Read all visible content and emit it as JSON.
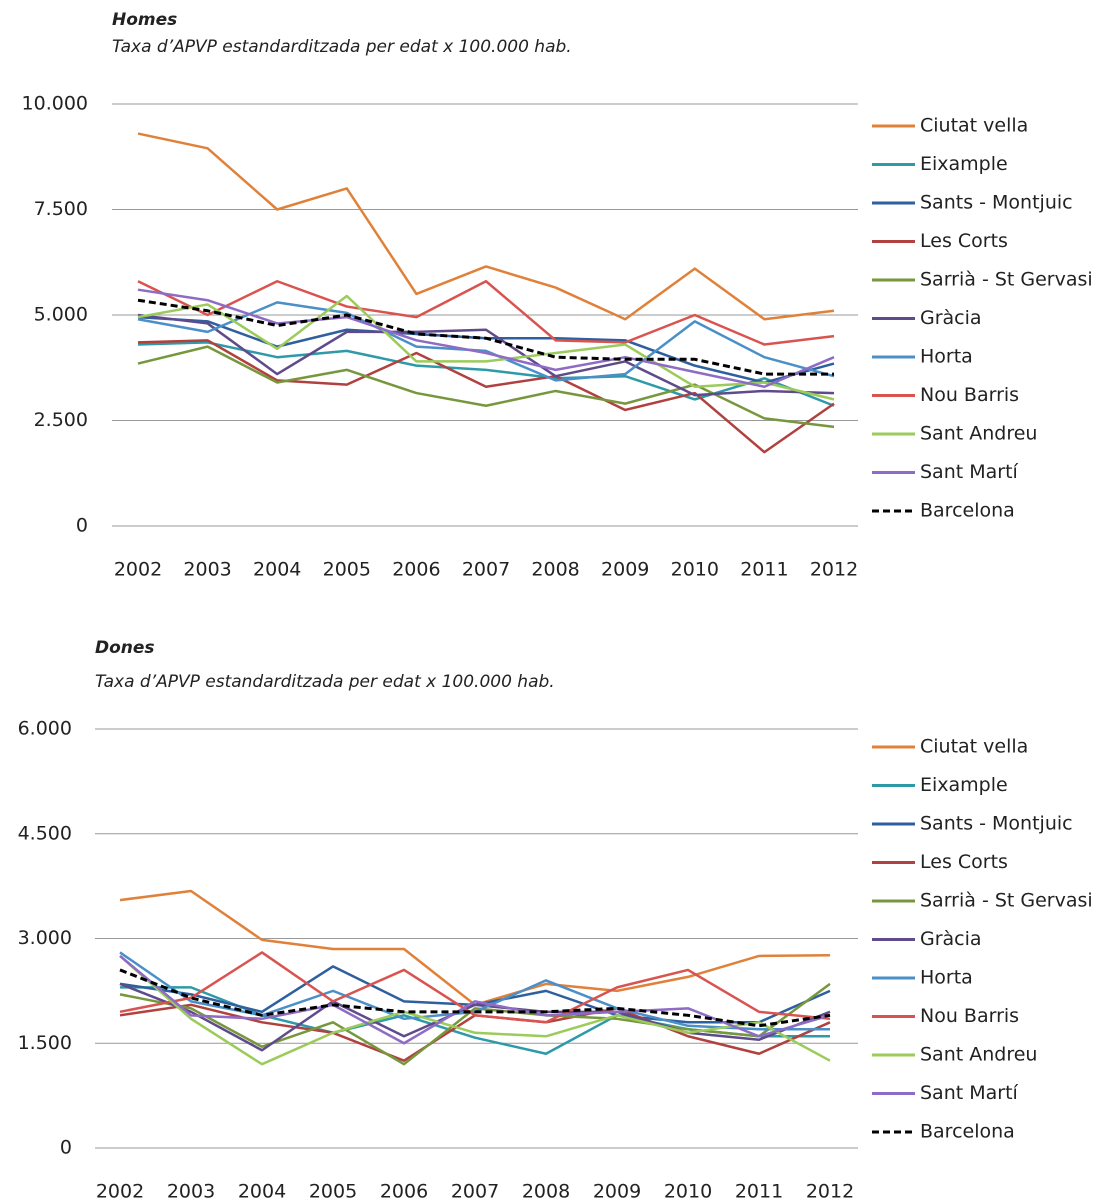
{
  "chart_data": [
    {
      "type": "line",
      "title": "Homes",
      "subtitle": "Taxa d’APVP estandarditzada per edat x 100.000 hab.",
      "categories": [
        "2002",
        "2003",
        "2004",
        "2005",
        "2006",
        "2007",
        "2008",
        "2009",
        "2010",
        "2011",
        "2012"
      ],
      "ylim": [
        0,
        10000
      ],
      "yticks": [
        0,
        {
          "value": 2500,
          "label": "2.500"
        },
        {
          "value": 5000,
          "label": "5.000"
        },
        {
          "value": 7500,
          "label": "7.500"
        },
        {
          "value": 10000,
          "label": "10.000"
        }
      ],
      "grid": true,
      "legend": "right",
      "series": [
        {
          "name": "Ciutat vella",
          "color": "#e0813a",
          "values": [
            9300,
            8950,
            7500,
            8000,
            5500,
            6150,
            5650,
            4900,
            6100,
            4900,
            5100
          ]
        },
        {
          "name": "Eixample",
          "color": "#2e9aa8",
          "values": [
            4300,
            4350,
            4000,
            4150,
            3800,
            3700,
            3500,
            3550,
            3000,
            3500,
            2850
          ]
        },
        {
          "name": "Sants - Montjuic",
          "color": "#2e5f9e",
          "values": [
            4950,
            4850,
            4250,
            4650,
            4550,
            4450,
            4450,
            4400,
            3800,
            3400,
            3850
          ]
        },
        {
          "name": "Les Corts",
          "color": "#b0413e",
          "values": [
            4350,
            4400,
            3450,
            3350,
            4100,
            3300,
            3550,
            2750,
            3150,
            1750,
            2900
          ]
        },
        {
          "name": "Sarrià - St Gervasi",
          "color": "#77973d",
          "values": [
            3850,
            4250,
            3400,
            3700,
            3150,
            2850,
            3200,
            2900,
            3350,
            2550,
            2350
          ]
        },
        {
          "name": "Gràcia",
          "color": "#5f4b8b",
          "values": [
            5000,
            4800,
            3600,
            4600,
            4600,
            4650,
            3550,
            3900,
            3100,
            3200,
            3150
          ]
        },
        {
          "name": "Horta",
          "color": "#4a8fc8",
          "values": [
            4900,
            4600,
            5300,
            5050,
            4250,
            4150,
            3450,
            3600,
            4850,
            4000,
            3550
          ]
        },
        {
          "name": "Nou Barris",
          "color": "#d9534f",
          "values": [
            5800,
            5000,
            5800,
            5200,
            4950,
            5800,
            4400,
            4350,
            5000,
            4300,
            4500
          ]
        },
        {
          "name": "Sant Andreu",
          "color": "#9bcb5a",
          "values": [
            4950,
            5250,
            4200,
            5450,
            3900,
            3900,
            4100,
            4300,
            3300,
            3400,
            3000
          ]
        },
        {
          "name": "Sant Martí",
          "color": "#8e6bc4",
          "values": [
            5600,
            5350,
            4800,
            4950,
            4400,
            4100,
            3700,
            4000,
            3650,
            3300,
            4000
          ]
        },
        {
          "name": "Barcelona",
          "color": "#000000",
          "dashed": true,
          "values": [
            5350,
            5100,
            4750,
            5000,
            4550,
            4450,
            4000,
            3950,
            3950,
            3600,
            3600
          ]
        }
      ]
    },
    {
      "type": "line",
      "title": "Dones",
      "subtitle": "Taxa d’APVP estandarditzada per edat x 100.000 hab.",
      "categories": [
        "2002",
        "2003",
        "2004",
        "2005",
        "2006",
        "2007",
        "2008",
        "2009",
        "2010",
        "2011",
        "2012"
      ],
      "ylim": [
        0,
        6000
      ],
      "yticks": [
        0,
        {
          "value": 1500,
          "label": "1.500"
        },
        {
          "value": 3000,
          "label": "3.000"
        },
        {
          "value": 4500,
          "label": "4.500"
        },
        {
          "value": 6000,
          "label": "6.000"
        }
      ],
      "grid": true,
      "legend": "right",
      "series": [
        {
          "name": "Ciutat vella",
          "color": "#e0813a",
          "values": [
            3550,
            3680,
            2980,
            2850,
            2850,
            2050,
            2350,
            2250,
            2450,
            2750,
            2760
          ]
        },
        {
          "name": "Eixample",
          "color": "#2e9aa8",
          "values": [
            2300,
            2300,
            1900,
            1650,
            1900,
            1580,
            1350,
            1900,
            1700,
            1600,
            1600
          ]
        },
        {
          "name": "Sants - Montjuic",
          "color": "#2e5f9e",
          "values": [
            2350,
            2200,
            1950,
            2600,
            2100,
            2050,
            2250,
            1900,
            1800,
            1800,
            2250
          ]
        },
        {
          "name": "Les Corts",
          "color": "#b0413e",
          "values": [
            1900,
            2050,
            1800,
            1650,
            1250,
            1900,
            1800,
            2000,
            1600,
            1350,
            1800
          ]
        },
        {
          "name": "Sarrià - St Gervasi",
          "color": "#77973d",
          "values": [
            2200,
            2000,
            1450,
            1800,
            1200,
            2000,
            1900,
            1850,
            1700,
            1600,
            2350
          ]
        },
        {
          "name": "Gràcia",
          "color": "#5f4b8b",
          "values": [
            2350,
            1950,
            1400,
            2100,
            1600,
            2050,
            1950,
            1950,
            1650,
            1550,
            1950
          ]
        },
        {
          "name": "Horta",
          "color": "#4a8fc8",
          "values": [
            2800,
            2100,
            1900,
            2250,
            1850,
            1950,
            2400,
            2000,
            1750,
            1700,
            1700
          ]
        },
        {
          "name": "Nou Barris",
          "color": "#d9534f",
          "values": [
            1950,
            2150,
            2800,
            2100,
            2550,
            1900,
            1800,
            2300,
            2550,
            1950,
            1850
          ]
        },
        {
          "name": "Sant Andreu",
          "color": "#9bcb5a",
          "values": [
            2750,
            1850,
            1200,
            1650,
            1950,
            1650,
            1600,
            1900,
            1650,
            1800,
            1250
          ]
        },
        {
          "name": "Sant Martí",
          "color": "#8e6bc4",
          "values": [
            2750,
            1900,
            1850,
            2050,
            1500,
            2100,
            1900,
            1950,
            2000,
            1600,
            1900
          ]
        },
        {
          "name": "Barcelona",
          "color": "#000000",
          "dashed": true,
          "values": [
            2550,
            2150,
            1900,
            2050,
            1950,
            1950,
            1950,
            2000,
            1900,
            1750,
            1900
          ]
        }
      ]
    }
  ]
}
